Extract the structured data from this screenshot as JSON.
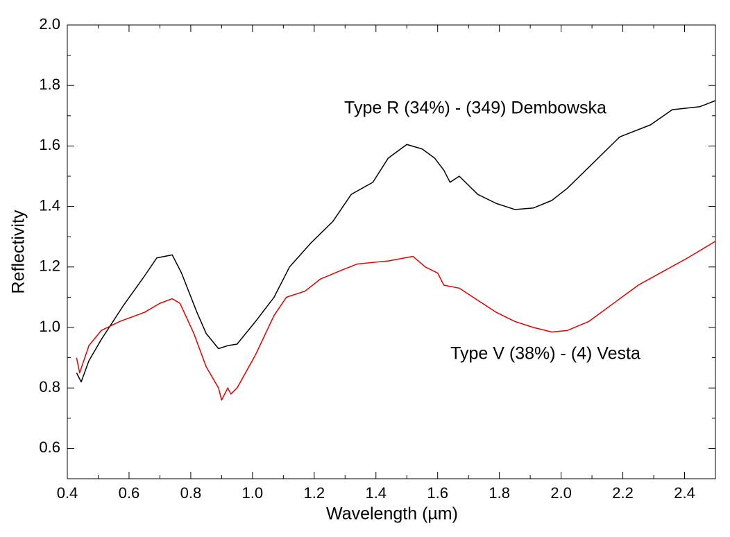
{
  "chart_data": {
    "type": "line",
    "x_label": "Wavelength (µm)",
    "y_label": "Reflectivity",
    "xlim": [
      0.4,
      2.5
    ],
    "xticks": [
      0.4,
      0.6,
      0.8,
      {
        "value": 1,
        "label": "1.0"
      },
      1.2,
      1.4,
      1.6,
      1.8,
      {
        "value": 2,
        "label": "2.0"
      },
      2.2,
      2.4
    ],
    "ylim": [
      0.5,
      2.0
    ],
    "yticks": [
      0.6,
      0.8,
      {
        "value": 1,
        "label": "1.0"
      },
      1.2,
      1.4,
      1.6,
      1.8,
      {
        "value": 2,
        "label": "2.0"
      }
    ],
    "series": [
      {
        "name": "Type R (34%) - (349) Dembowska",
        "color": "#000000",
        "x": [
          0.43,
          0.445,
          0.47,
          0.51,
          0.58,
          0.65,
          0.69,
          0.74,
          0.77,
          0.82,
          0.85,
          0.89,
          0.92,
          0.95,
          1.01,
          1.07,
          1.12,
          1.19,
          1.26,
          1.32,
          1.39,
          1.44,
          1.5,
          1.55,
          1.59,
          1.62,
          1.64,
          1.67,
          1.73,
          1.79,
          1.85,
          1.91,
          1.97,
          2.02,
          2.09,
          2.19,
          2.29,
          2.36,
          2.45,
          2.5
        ],
        "values": [
          0.85,
          0.82,
          0.89,
          0.96,
          1.07,
          1.17,
          1.23,
          1.24,
          1.18,
          1.05,
          0.98,
          0.93,
          0.94,
          0.945,
          1.02,
          1.1,
          1.2,
          1.28,
          1.35,
          1.44,
          1.48,
          1.56,
          1.605,
          1.59,
          1.56,
          1.52,
          1.48,
          1.5,
          1.44,
          1.41,
          1.39,
          1.395,
          1.42,
          1.46,
          1.53,
          1.63,
          1.67,
          1.72,
          1.73,
          1.75
        ]
      },
      {
        "name": "Type V (38%) - (4) Vesta",
        "color": "#e00000",
        "x": [
          0.43,
          0.44,
          0.47,
          0.51,
          0.57,
          0.65,
          0.7,
          0.74,
          0.765,
          0.81,
          0.85,
          0.89,
          0.9,
          0.92,
          0.93,
          0.95,
          1.01,
          1.07,
          1.11,
          1.17,
          1.22,
          1.29,
          1.34,
          1.44,
          1.52,
          1.56,
          1.6,
          1.62,
          1.67,
          1.79,
          1.85,
          1.91,
          1.97,
          2.02,
          2.09,
          2.25,
          2.41,
          2.5
        ],
        "values": [
          0.9,
          0.85,
          0.94,
          0.99,
          1.02,
          1.05,
          1.08,
          1.095,
          1.08,
          0.98,
          0.87,
          0.8,
          0.76,
          0.8,
          0.78,
          0.8,
          0.91,
          1.04,
          1.1,
          1.12,
          1.16,
          1.19,
          1.21,
          1.22,
          1.235,
          1.2,
          1.18,
          1.14,
          1.13,
          1.05,
          1.02,
          1.0,
          0.985,
          0.99,
          1.02,
          1.14,
          1.23,
          1.285
        ]
      }
    ]
  }
}
